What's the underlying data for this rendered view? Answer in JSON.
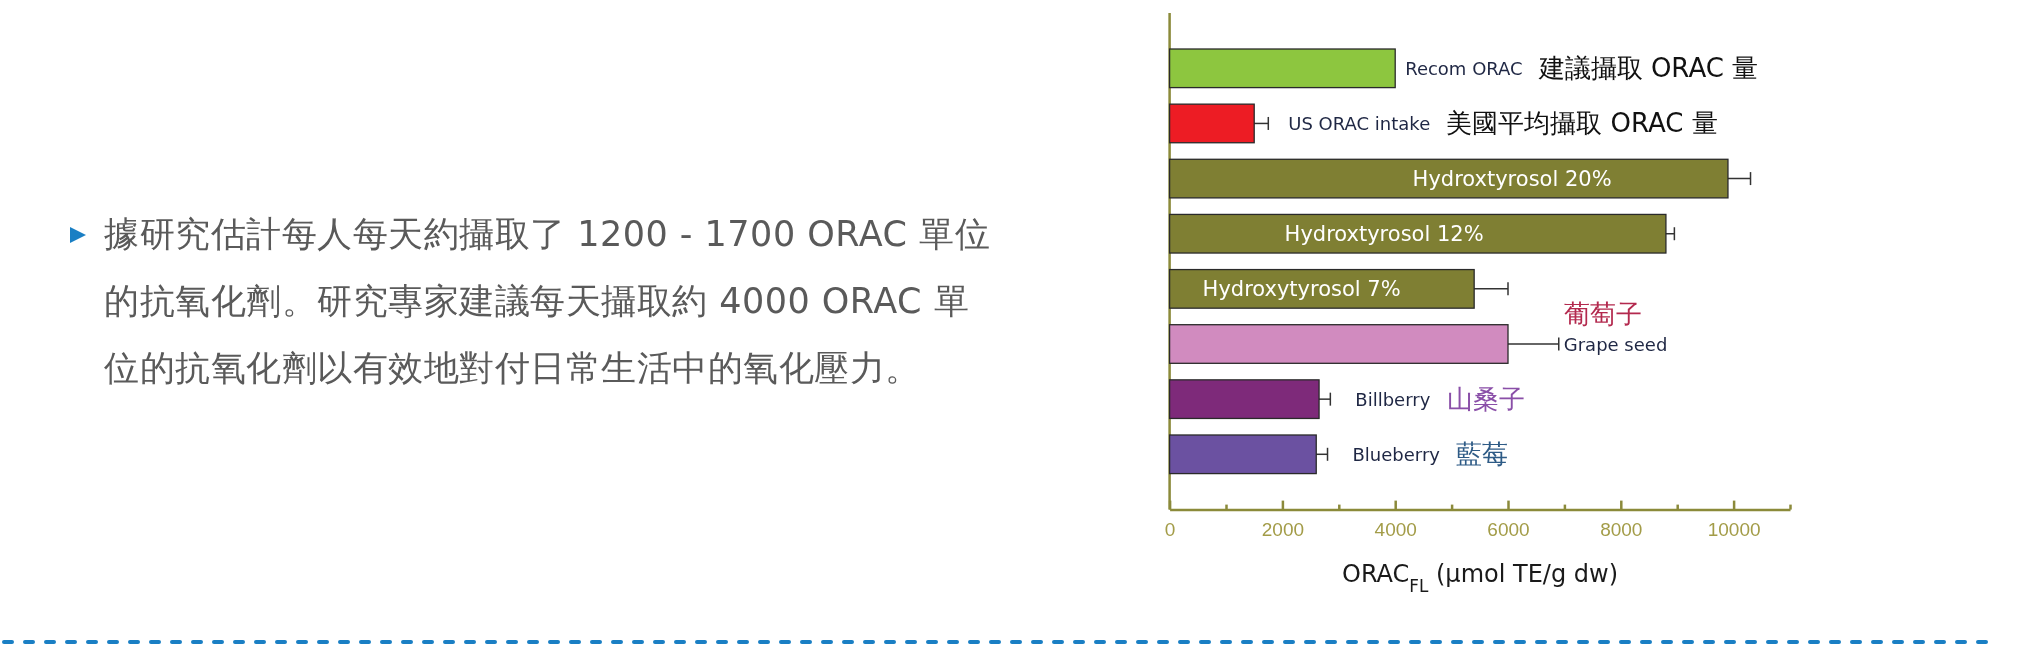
{
  "chart_data": {
    "type": "bar",
    "orientation": "horizontal",
    "categories": [
      "Recom ORAC",
      "US ORAC intake",
      "Hydroxtyrosol 20%",
      "Hydroxtyrosol 12%",
      "Hydroxytyrosol 7%",
      "Grape seed",
      "Billberry",
      "Blueberry"
    ],
    "values": [
      4000,
      1500,
      9900,
      8800,
      5400,
      6000,
      2650,
      2600
    ],
    "errors": [
      null,
      250,
      400,
      150,
      600,
      900,
      200,
      200
    ],
    "colors": [
      "#8dc63f",
      "#ed1c24",
      "#7f7f33",
      "#7f7f33",
      "#7f7f33",
      "#d18bbf",
      "#7e2a7a",
      "#6b51a1"
    ],
    "xlabel": "ORAC$_{FL}$ (μmol TE/g dw)",
    "xlim": [
      0,
      11000
    ],
    "xticks": [
      0,
      {
        "value": 1000,
        "label": null
      },
      2000,
      {
        "value": 3000,
        "label": null
      },
      4000,
      {
        "value": 5000,
        "label": null
      },
      6000,
      {
        "value": 7000,
        "label": null
      },
      8000,
      {
        "value": 9000,
        "label": null
      },
      10000,
      {
        "value": 11000,
        "label": null
      }
    ],
    "annotations": [
      "據研究估計每人每天約攝取了 1200 - 1700 ORAC 單位的抗氧化劑。研究專家建議每天攝取約 4000 ORAC 單位的抗氧化劑以有效地對付日常生活中的氧化壓力。",
      "建議攝取 ORAC 量",
      "美國平均攝取 ORAC 量",
      "葡萄子",
      "山桑子",
      "藍莓"
    ]
  }
}
